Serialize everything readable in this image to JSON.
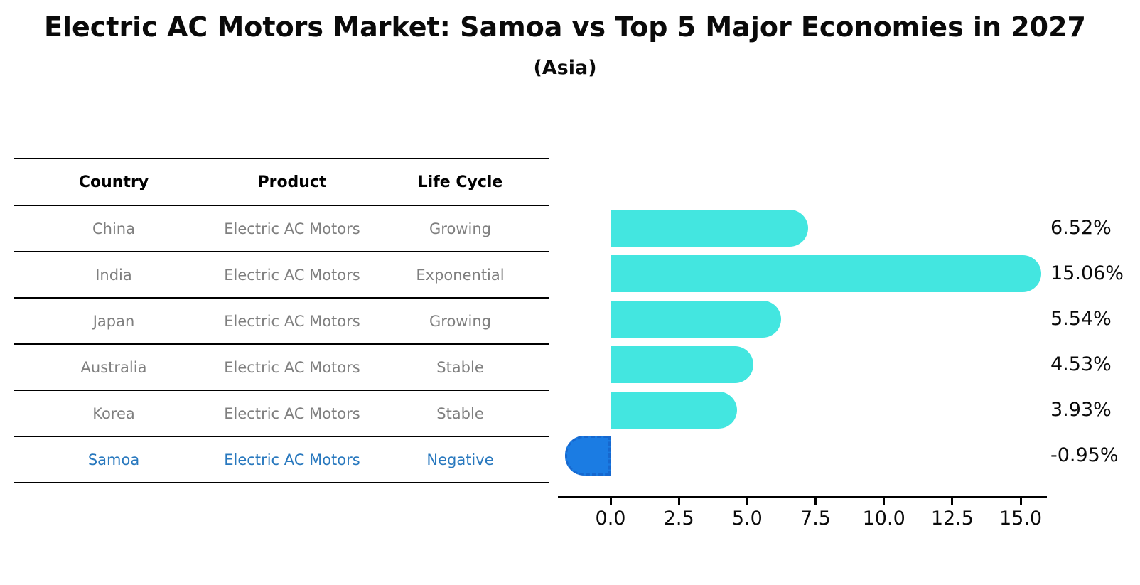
{
  "chart_data": {
    "type": "bar",
    "orientation": "horizontal",
    "title": "Electric AC Motors Market: Samoa vs Top 5 Major Economies in 2027",
    "subtitle": "(Asia)",
    "categories": [
      "China",
      "India",
      "Japan",
      "Australia",
      "Korea",
      "Samoa"
    ],
    "values": [
      6.52,
      15.06,
      5.54,
      4.53,
      3.93,
      -0.95
    ],
    "value_labels": [
      "6.52%",
      "15.06%",
      "5.54%",
      "4.53%",
      "3.93%",
      "-0.95%"
    ],
    "highlighted_category": "Samoa",
    "x_tick_labels": [
      "0.0",
      "2.5",
      "5.0",
      "7.5",
      "10.0",
      "12.5",
      "15.0"
    ],
    "x_tick_values": [
      0,
      2.5,
      5,
      7.5,
      10,
      12.5,
      15
    ],
    "xlim": [
      -1.92,
      15.96
    ],
    "grid": false,
    "legend": false,
    "ylabel": "",
    "xlabel": ""
  },
  "table": {
    "headers": [
      "Country",
      "Product",
      "Life Cycle"
    ],
    "rows": [
      {
        "country": "China",
        "product": "Electric AC Motors",
        "life_cycle": "Growing",
        "highlight": false
      },
      {
        "country": "India",
        "product": "Electric AC Motors",
        "life_cycle": "Exponential",
        "highlight": false
      },
      {
        "country": "Japan",
        "product": "Electric AC Motors",
        "life_cycle": "Growing",
        "highlight": false
      },
      {
        "country": "Australia",
        "product": "Electric AC Motors",
        "life_cycle": "Stable",
        "highlight": false
      },
      {
        "country": "Korea",
        "product": "Electric AC Motors",
        "life_cycle": "Stable",
        "highlight": false
      },
      {
        "country": "Samoa",
        "product": "Electric AC Motors",
        "life_cycle": "Negative",
        "highlight": true
      }
    ]
  },
  "colors": {
    "bar_positive": "#43e6e0",
    "bar_negative": "#1b7ce3",
    "bar_negative_edge": "#1668cf",
    "highlight_text": "#2878be",
    "table_text": "#7f7f7f",
    "axis_text": "#0a0a0a"
  }
}
